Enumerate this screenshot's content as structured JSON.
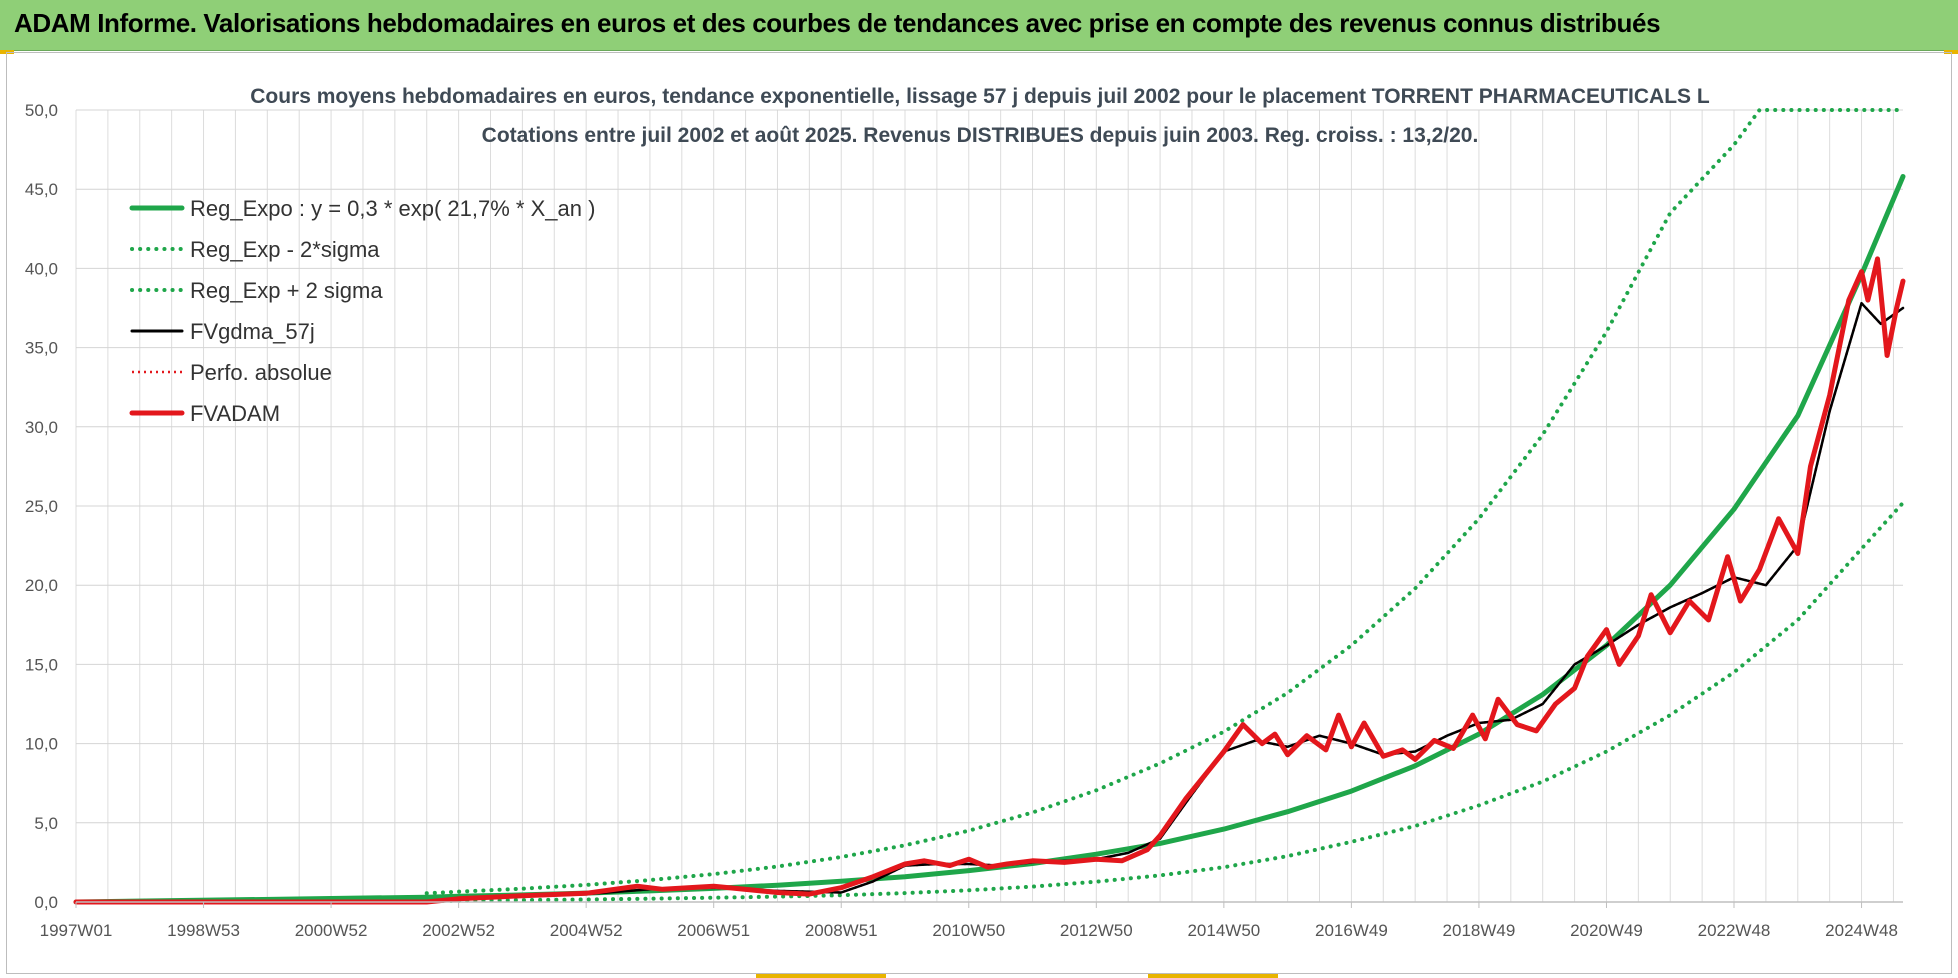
{
  "banner": {
    "title": "ADAM Informe. Valorisations hebdomadaires en euros et des courbes de tendances avec prise en compte des revenus connus distribués"
  },
  "chart_data": {
    "type": "line",
    "title_lines": [
      "Cours moyens hebdomadaires en euros, tendance exponentielle, lissage 57 j depuis juil 2002 pour le placement TORRENT PHARMACEUTICALS L",
      "Cotations entre juil 2002 et août 2025. Revenus DISTRIBUES depuis juin 2003. Reg. croiss. : 13,2/20."
    ],
    "x_range": [
      1997.0,
      2025.65
    ],
    "ylim": [
      0,
      50
    ],
    "y_ticks": [
      "0,0",
      "5,0",
      "10,0",
      "15,0",
      "20,0",
      "25,0",
      "30,0",
      "35,0",
      "40,0",
      "45,0",
      "50,0"
    ],
    "y_tick_values": [
      0,
      5,
      10,
      15,
      20,
      25,
      30,
      35,
      40,
      45,
      50
    ],
    "x_ticks": [
      {
        "label": "1997W01",
        "x": 1997.0
      },
      {
        "label": "1998W53",
        "x": 1999.0
      },
      {
        "label": "2000W52",
        "x": 2001.0
      },
      {
        "label": "2002W52",
        "x": 2003.0
      },
      {
        "label": "2004W52",
        "x": 2005.0
      },
      {
        "label": "2006W51",
        "x": 2007.0
      },
      {
        "label": "2008W51",
        "x": 2009.0
      },
      {
        "label": "2010W50",
        "x": 2011.0
      },
      {
        "label": "2012W50",
        "x": 2013.0
      },
      {
        "label": "2014W50",
        "x": 2015.0
      },
      {
        "label": "2016W49",
        "x": 2017.0
      },
      {
        "label": "2018W49",
        "x": 2019.0
      },
      {
        "label": "2020W49",
        "x": 2021.0
      },
      {
        "label": "2022W48",
        "x": 2023.0
      },
      {
        "label": "2024W48",
        "x": 2025.0
      }
    ],
    "grid": true,
    "legend_position": "top-left",
    "series": [
      {
        "name": "Reg_Expo : y = 0,3 * exp( 21,7% *  X_an )",
        "color": "#1fa64a",
        "style": "solid",
        "x": [
          1997.0,
          2002.5,
          2003.0,
          2004.0,
          2005.0,
          2006.0,
          2007.0,
          2008.0,
          2009.0,
          2010.0,
          2011.0,
          2012.0,
          2013.0,
          2014.0,
          2015.0,
          2016.0,
          2017.0,
          2018.0,
          2019.0,
          2020.0,
          2021.0,
          2022.0,
          2023.0,
          2024.0,
          2025.0,
          2025.65
        ],
        "y": [
          0,
          0.3,
          0.36,
          0.45,
          0.56,
          0.7,
          0.86,
          1.06,
          1.31,
          1.6,
          1.98,
          2.43,
          3.02,
          3.7,
          4.6,
          5.7,
          7.0,
          8.6,
          10.6,
          13.1,
          16.2,
          20.0,
          24.8,
          30.7,
          39.6,
          45.8
        ]
      },
      {
        "name": "Reg_Exp - 2*sigma",
        "color": "#1fa64a",
        "style": "dotted",
        "x": [
          2002.5,
          2003.0,
          2004.0,
          2005.0,
          2006.0,
          2007.0,
          2008.0,
          2009.0,
          2010.0,
          2011.0,
          2012.0,
          2013.0,
          2014.0,
          2015.0,
          2016.0,
          2017.0,
          2018.0,
          2019.0,
          2020.0,
          2021.0,
          2022.0,
          2023.0,
          2024.0,
          2025.0,
          2025.65
        ],
        "y": [
          0.05,
          0.08,
          0.12,
          0.16,
          0.21,
          0.27,
          0.34,
          0.43,
          0.56,
          0.74,
          0.97,
          1.28,
          1.68,
          2.2,
          2.9,
          3.8,
          4.8,
          6.1,
          7.6,
          9.5,
          11.8,
          14.5,
          17.8,
          22.3,
          25.2
        ]
      },
      {
        "name": "Reg_Exp + 2 sigma",
        "color": "#1fa64a",
        "style": "dotted",
        "x": [
          2002.5,
          2003.0,
          2004.0,
          2005.0,
          2006.0,
          2007.0,
          2008.0,
          2009.0,
          2010.0,
          2011.0,
          2012.0,
          2013.0,
          2014.0,
          2015.0,
          2016.0,
          2017.0,
          2018.0,
          2019.0,
          2020.0,
          2021.0,
          2022.0,
          2023.0,
          2023.4,
          2024.0,
          2025.0,
          2025.65
        ],
        "y": [
          0.55,
          0.65,
          0.84,
          1.08,
          1.38,
          1.76,
          2.24,
          2.84,
          3.58,
          4.5,
          5.65,
          7.05,
          8.75,
          10.75,
          13.2,
          16.2,
          19.8,
          24.2,
          29.5,
          36.0,
          43.5,
          47.8,
          50.0,
          50.0,
          50.0,
          50.0
        ]
      },
      {
        "name": "FVgdma_57j",
        "color": "#000000",
        "style": "solid",
        "x": [
          1997.0,
          2002.5,
          2003.0,
          2004.0,
          2005.0,
          2006.0,
          2007.0,
          2008.0,
          2009.0,
          2009.5,
          2010.0,
          2010.5,
          2011.0,
          2011.5,
          2012.0,
          2012.5,
          2013.0,
          2013.5,
          2014.0,
          2014.5,
          2015.0,
          2015.5,
          2016.0,
          2016.5,
          2017.0,
          2017.5,
          2018.0,
          2018.5,
          2019.0,
          2019.5,
          2020.0,
          2020.5,
          2021.0,
          2021.5,
          2022.0,
          2022.5,
          2023.0,
          2023.5,
          2024.0,
          2024.5,
          2025.0,
          2025.3,
          2025.65
        ],
        "y": [
          0,
          0,
          0.2,
          0.35,
          0.5,
          0.8,
          0.9,
          0.7,
          0.6,
          1.3,
          2.3,
          2.4,
          2.4,
          2.3,
          2.5,
          2.6,
          2.7,
          3.1,
          4.0,
          6.8,
          9.5,
          10.2,
          9.8,
          10.5,
          10.0,
          9.3,
          9.5,
          10.5,
          11.3,
          11.5,
          12.5,
          15.0,
          16.2,
          17.5,
          18.6,
          19.5,
          20.5,
          20.0,
          22.5,
          31.0,
          37.8,
          36.5,
          37.5
        ]
      },
      {
        "name": "Perfo. absolue",
        "color": "#e3171c",
        "style": "dotted",
        "x": [
          1997.0,
          2002.5,
          2003.0,
          2004.0,
          2005.0,
          2006.0,
          2007.0,
          2008.0,
          2009.0,
          2009.5,
          2010.0,
          2010.5,
          2011.0,
          2011.5,
          2012.0,
          2012.5,
          2013.0,
          2013.5,
          2014.0,
          2014.5,
          2015.0,
          2015.5,
          2016.0,
          2016.5,
          2017.0,
          2017.5,
          2018.0,
          2018.5,
          2019.0,
          2019.5,
          2020.0,
          2020.5,
          2021.0,
          2021.5,
          2022.0,
          2022.5,
          2023.0,
          2023.5,
          2024.0,
          2024.5,
          2025.0,
          2025.3,
          2025.65
        ],
        "y": [
          0,
          0,
          0.2,
          0.35,
          0.5,
          0.8,
          0.9,
          0.7,
          0.6,
          1.3,
          2.3,
          2.4,
          2.4,
          2.3,
          2.5,
          2.6,
          2.7,
          3.1,
          4.0,
          6.8,
          9.5,
          10.2,
          9.8,
          10.5,
          10.0,
          9.3,
          9.5,
          10.5,
          11.3,
          11.5,
          12.5,
          15.0,
          16.2,
          17.5,
          18.6,
          19.5,
          20.5,
          20.0,
          22.5,
          31.0,
          37.8,
          36.5,
          37.5
        ]
      },
      {
        "name": "FVADAM",
        "color": "#e3171c",
        "style": "solid",
        "x": [
          1997.0,
          2002.5,
          2003.0,
          2004.0,
          2005.0,
          2005.8,
          2006.2,
          2007.0,
          2008.0,
          2008.5,
          2009.0,
          2009.5,
          2010.0,
          2010.3,
          2010.7,
          2011.0,
          2011.3,
          2011.6,
          2012.0,
          2012.5,
          2013.0,
          2013.4,
          2013.8,
          2014.0,
          2014.4,
          2014.8,
          2015.0,
          2015.3,
          2015.6,
          2015.8,
          2016.0,
          2016.3,
          2016.6,
          2016.8,
          2017.0,
          2017.2,
          2017.5,
          2017.8,
          2018.0,
          2018.3,
          2018.6,
          2018.9,
          2019.1,
          2019.3,
          2019.6,
          2019.9,
          2020.2,
          2020.5,
          2020.7,
          2021.0,
          2021.2,
          2021.5,
          2021.7,
          2022.0,
          2022.3,
          2022.6,
          2022.9,
          2023.1,
          2023.4,
          2023.7,
          2024.0,
          2024.2,
          2024.5,
          2024.8,
          2025.0,
          2025.1,
          2025.25,
          2025.4,
          2025.55,
          2025.65
        ],
        "y": [
          0,
          0,
          0.2,
          0.4,
          0.55,
          1.0,
          0.8,
          1.0,
          0.6,
          0.5,
          0.9,
          1.6,
          2.4,
          2.6,
          2.3,
          2.7,
          2.2,
          2.4,
          2.6,
          2.5,
          2.7,
          2.6,
          3.3,
          4.2,
          6.5,
          8.5,
          9.5,
          11.2,
          10.0,
          10.6,
          9.3,
          10.5,
          9.6,
          11.8,
          9.8,
          11.3,
          9.2,
          9.6,
          9.0,
          10.2,
          9.7,
          11.8,
          10.3,
          12.8,
          11.2,
          10.8,
          12.5,
          13.5,
          15.5,
          17.2,
          15.0,
          16.8,
          19.4,
          17.0,
          19.0,
          17.8,
          21.8,
          19.0,
          21.0,
          24.2,
          22.0,
          27.5,
          32.0,
          38.0,
          39.8,
          38.0,
          40.6,
          34.5,
          37.5,
          39.2
        ]
      }
    ]
  }
}
